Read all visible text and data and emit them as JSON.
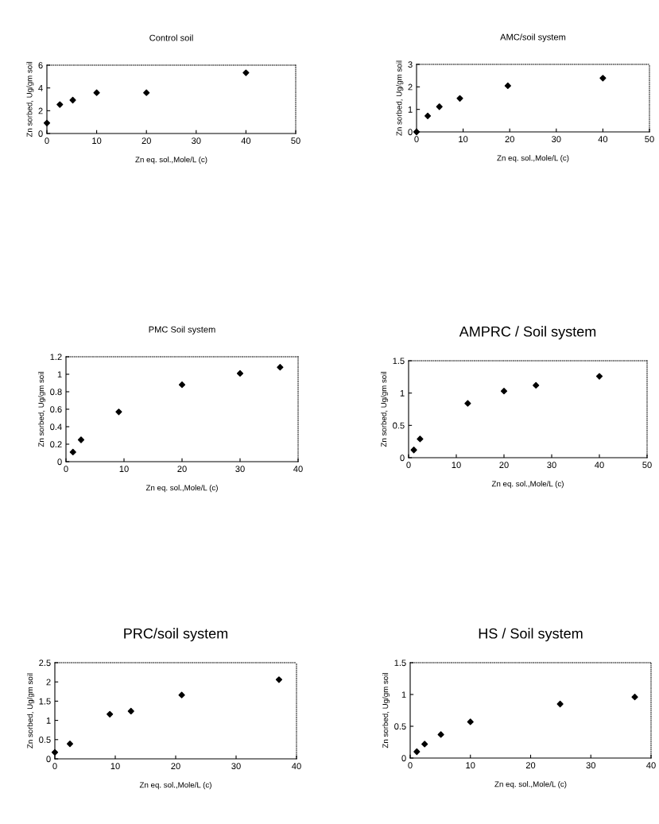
{
  "chart_data": [
    {
      "type": "scatter",
      "title": "Control soil",
      "xlabel": "Zn eq. sol.,Mole/L (c)",
      "ylabel": "Zn sorbed, Ug/gm soil",
      "x": [
        0,
        2.6,
        5.2,
        10,
        20,
        40
      ],
      "values": [
        0.92,
        2.54,
        2.93,
        3.58,
        3.58,
        5.33
      ],
      "color": "#000000",
      "marker": "diamond",
      "xlim": [
        0,
        50
      ],
      "xticks": [
        0,
        10,
        20,
        30,
        40,
        50
      ],
      "ylim": [
        0,
        6
      ],
      "yticks": [
        0,
        2,
        4,
        6
      ]
    },
    {
      "type": "scatter",
      "title": "AMC/soil system",
      "xlabel": "Zn eq. sol.,Mole/L (c)",
      "ylabel": "Zn sorbed, Ug/gm soil",
      "x": [
        0,
        2.4,
        4.9,
        9.3,
        19.6,
        40
      ],
      "values": [
        0,
        0.71,
        1.12,
        1.49,
        2.05,
        2.39
      ],
      "color": "#000000",
      "marker": "diamond",
      "xlim": [
        0,
        50
      ],
      "xticks": [
        0,
        10,
        20,
        30,
        40,
        50
      ],
      "ylim": [
        0,
        3
      ],
      "yticks": [
        0,
        1,
        2,
        3
      ]
    },
    {
      "type": "scatter",
      "title": "PMC Soil system",
      "xlabel": "Zn eq. sol.,Mole/L (c)",
      "ylabel": "Zn sorbed, Ug/gm soil",
      "x": [
        1.2,
        2.6,
        9.1,
        20,
        30,
        36.9
      ],
      "values": [
        0.11,
        0.25,
        0.57,
        0.88,
        1.01,
        1.08
      ],
      "color": "#000000",
      "marker": "diamond",
      "xlim": [
        0,
        40
      ],
      "xticks": [
        0,
        10,
        20,
        30,
        40
      ],
      "ylim": [
        0,
        1.2
      ],
      "yticks": [
        0,
        0.2,
        0.4,
        0.6,
        0.8,
        1,
        1.2
      ]
    },
    {
      "type": "scatter",
      "title": "AMPRC / Soil system",
      "xlabel": "Zn eq. sol.,Mole/L (c)",
      "ylabel": "Zn sorbed, Ug/gm soil",
      "x": [
        1.1,
        2.4,
        12.4,
        20,
        26.7,
        40
      ],
      "values": [
        0.12,
        0.29,
        0.84,
        1.03,
        1.12,
        1.26
      ],
      "color": "#000000",
      "marker": "diamond",
      "xlim": [
        0,
        50
      ],
      "xticks": [
        0,
        10,
        20,
        30,
        40,
        50
      ],
      "ylim": [
        0,
        1.5
      ],
      "yticks": [
        0,
        0.5,
        1,
        1.5
      ]
    },
    {
      "type": "scatter",
      "title": "PRC/soil system",
      "xlabel": "Zn eq. sol.,Mole/L (c)",
      "ylabel": "Zn sorbed, Ug/gm soil",
      "x": [
        0,
        2.5,
        9.1,
        12.6,
        21,
        37.1
      ],
      "values": [
        0.17,
        0.39,
        1.16,
        1.24,
        1.66,
        2.06
      ],
      "color": "#000000",
      "marker": "diamond",
      "xlim": [
        0,
        40
      ],
      "xticks": [
        0,
        10,
        20,
        30,
        40
      ],
      "ylim": [
        0,
        2.5
      ],
      "yticks": [
        0,
        0.5,
        1,
        1.5,
        2,
        2.5
      ]
    },
    {
      "type": "scatter",
      "title": "HS / Soil system",
      "xlabel": "Zn eq. sol.,Mole/L (c)",
      "ylabel": "Zn sorbed, Ug/gm soil",
      "x": [
        1.1,
        2.4,
        5.1,
        10,
        24.9,
        37.3
      ],
      "values": [
        0.1,
        0.22,
        0.37,
        0.57,
        0.85,
        0.96
      ],
      "color": "#000000",
      "marker": "diamond",
      "xlim": [
        0,
        40
      ],
      "xticks": [
        0,
        10,
        20,
        30,
        40
      ],
      "ylim": [
        0,
        1.5
      ],
      "yticks": [
        0,
        0.5,
        1,
        1.5
      ]
    }
  ]
}
